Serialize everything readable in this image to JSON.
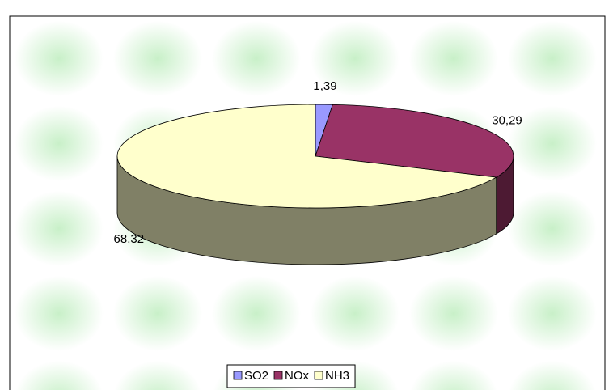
{
  "chart_data": {
    "type": "pie3d",
    "categories": [
      "SO2",
      "NOx",
      "NH3"
    ],
    "values": [
      1.39,
      30.29,
      68.32
    ],
    "value_labels": [
      "1,39",
      "30,29",
      "68,32"
    ],
    "colors": [
      "#9999ff",
      "#993366",
      "#ffffcc"
    ],
    "side_colors": [
      "#4d4d80",
      "#4d1a33",
      "#808066"
    ],
    "legend": "bottom"
  }
}
